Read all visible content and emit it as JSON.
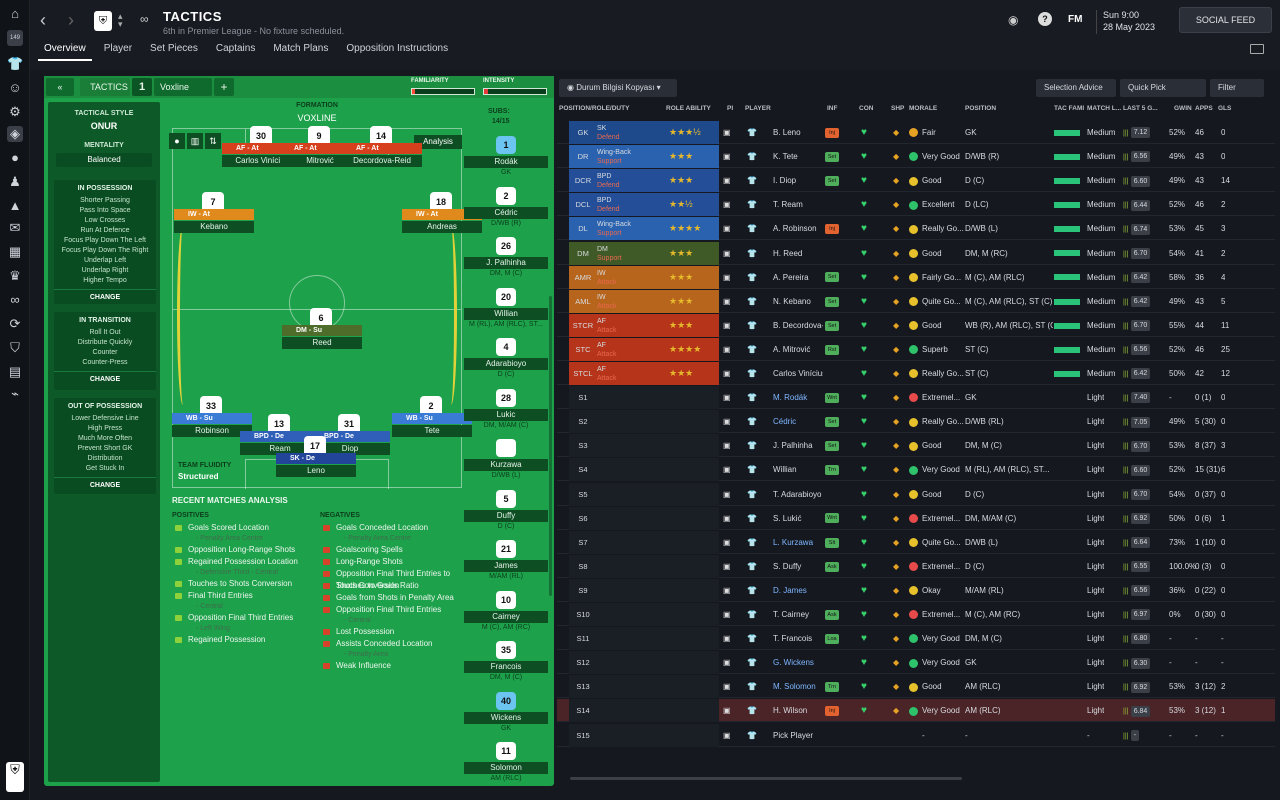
{
  "header": {
    "title": "TACTICS",
    "subtitle": "6th in Premier League - No fixture scheduled.",
    "tabs": [
      "Overview",
      "Player",
      "Set Pieces",
      "Captains",
      "Match Plans",
      "Opposition Instructions"
    ],
    "datetime_day": "Sun 9:00",
    "datetime_date": "28 May 2023",
    "social_feed": "SOCIAL FEED",
    "badge_count": "149",
    "fm_label": "FM"
  },
  "pitch_header": {
    "tactics_label": "TACTICS",
    "slot_number": "1",
    "tactic_name": "Voxline",
    "add_label": "+",
    "familiarity_label": "FAMILIARITY",
    "intensity_label": "INTENSITY"
  },
  "tactical_style": {
    "label": "TACTICAL STYLE",
    "value": "ONUR",
    "mentality_label": "MENTALITY",
    "mentality_value": "Balanced",
    "in_possession": {
      "title": "IN POSSESSION",
      "items": [
        "Shorter Passing",
        "Pass Into Space",
        "Low Crosses",
        "Run At Defence",
        "Focus Play Down The Left",
        "Focus Play Down The Right",
        "Underlap Left",
        "Underlap Right",
        "Higher Tempo"
      ],
      "change": "CHANGE"
    },
    "in_transition": {
      "title": "IN TRANSITION",
      "items": [
        "Roll It Out",
        "Distribute Quickly",
        "Counter",
        "Counter-Press"
      ],
      "change": "CHANGE"
    },
    "out_of_possession": {
      "title": "OUT OF POSSESSION",
      "items": [
        "Lower Defensive Line",
        "High Press",
        "Much More Often",
        "Prevent Short GK",
        "Distribution",
        "Get Stuck In"
      ],
      "change": "CHANGE"
    }
  },
  "formation": {
    "label": "FORMATION",
    "value": "VOXLINE",
    "analysis_label": "Analysis",
    "team_fluidity_label": "TEAM FLUIDITY",
    "team_fluidity_value": "Structured"
  },
  "players_on_pitch": [
    {
      "num": "30",
      "role": "AF - At",
      "name": "Carlos Vinícius",
      "color": "#d7401c"
    },
    {
      "num": "9",
      "role": "AF - At",
      "name": "Mitrović",
      "color": "#d7401c"
    },
    {
      "num": "14",
      "role": "AF - At",
      "name": "Decordova-Reid",
      "color": "#d7401c"
    },
    {
      "num": "7",
      "role": "IW - At",
      "name": "Kebano",
      "color": "#e08a1e"
    },
    {
      "num": "18",
      "role": "IW - At",
      "name": "Andreas",
      "color": "#e08a1e"
    },
    {
      "num": "6",
      "role": "DM - Su",
      "name": "Reed",
      "color": "#4e6d2a"
    },
    {
      "num": "33",
      "role": "WB - Su",
      "name": "Robinson",
      "color": "#3a7bd5"
    },
    {
      "num": "13",
      "role": "BPD - De",
      "name": "Ream",
      "color": "#2f5fb8"
    },
    {
      "num": "31",
      "role": "BPD - De",
      "name": "Diop",
      "color": "#2f5fb8"
    },
    {
      "num": "2",
      "role": "WB - Su",
      "name": "Tete",
      "color": "#3a7bd5"
    },
    {
      "num": "17",
      "role": "SK - De",
      "name": "Leno",
      "color": "#22459a"
    }
  ],
  "subs": {
    "label": "SUBS:",
    "count": "14/15",
    "players": [
      {
        "num": "1",
        "name": "Rodák",
        "pos": "GK"
      },
      {
        "num": "2",
        "name": "Cédric",
        "pos": "D/WB (R)"
      },
      {
        "num": "26",
        "name": "J. Palhinha",
        "pos": "DM, M (C)"
      },
      {
        "num": "20",
        "name": "Willian",
        "pos": "M (RL), AM (RLC), ST..."
      },
      {
        "num": "4",
        "name": "Adarabioyo",
        "pos": "D (C)"
      },
      {
        "num": "28",
        "name": "Lukic",
        "pos": "DM, M/AM (C)"
      },
      {
        "num": "",
        "name": "Kurzawa",
        "pos": "D/WB (L)"
      },
      {
        "num": "5",
        "name": "Duffy",
        "pos": "D (C)"
      },
      {
        "num": "21",
        "name": "James",
        "pos": "M/AM (RL)"
      },
      {
        "num": "10",
        "name": "Cairney",
        "pos": "M (C), AM (RC)"
      },
      {
        "num": "35",
        "name": "Francois",
        "pos": "DM, M (C)"
      },
      {
        "num": "40",
        "name": "Wickens",
        "pos": "GK"
      },
      {
        "num": "11",
        "name": "Solomon",
        "pos": "AM (RLC)"
      }
    ]
  },
  "recent_analysis": {
    "title": "RECENT MATCHES ANALYSIS",
    "positives_label": "POSITIVES",
    "negatives_label": "NEGATIVES",
    "positives": [
      {
        "t": "Goals Scored Location",
        "s": "- Penalty Area Centre"
      },
      {
        "t": "Opposition Long-Range Shots",
        "s": ""
      },
      {
        "t": "Regained Possession Location",
        "s": "- Defensive Third - Central"
      },
      {
        "t": "Touches to Shots Conversion",
        "s": ""
      },
      {
        "t": "Final Third Entries",
        "s": "- Central"
      },
      {
        "t": "Opposition Final Third Entries",
        "s": "- Left Wing"
      },
      {
        "t": "Regained Possession",
        "s": ""
      }
    ],
    "negatives": [
      {
        "t": "Goals Conceded Location",
        "s": "- Penalty Area Centre"
      },
      {
        "t": "Goalscoring Spells",
        "s": ""
      },
      {
        "t": "Long-Range Shots",
        "s": ""
      },
      {
        "t": "Opposition Final Third Entries to Shots Conversion",
        "s": ""
      },
      {
        "t": "Touches to Goals Ratio",
        "s": ""
      },
      {
        "t": "Goals from Shots in Penalty Area",
        "s": ""
      },
      {
        "t": "Opposition Final Third Entries",
        "s": "- Central"
      },
      {
        "t": "Lost Possession",
        "s": ""
      },
      {
        "t": "Assists Conceded Location",
        "s": "- Penalty Area"
      },
      {
        "t": "Weak Influence",
        "s": ""
      }
    ]
  },
  "right_controls": {
    "view_dropdown": "Durum Bilgisi Kopyası",
    "selection_advice": "Selection Advice",
    "quick_pick": "Quick Pick",
    "filter": "Filter"
  },
  "columns": [
    "POSITION/ROLE/DUTY",
    "ROLE ABILITY",
    "PI",
    "PLAYER",
    "INF",
    "CON",
    "SHP",
    "MORALE",
    "POSITION",
    "TAC FAMI",
    "MATCH L...",
    "LAST 5 G...",
    "GWIN",
    "APPS",
    "GLS"
  ],
  "rows": [
    {
      "pos": "GK",
      "role": "SK",
      "duty": "Defend",
      "stars": "★★★½",
      "player": "B. Leno",
      "inf": "Inj",
      "morale": "Fair",
      "position": "GK",
      "match": "Medium",
      "rating": "7.12",
      "gwin": "52%",
      "apps": "46",
      "gls": "0",
      "rowcolor": "#1e4a8c"
    },
    {
      "pos": "DR",
      "role": "Wing-Back",
      "duty": "Support",
      "stars": "★★★",
      "player": "K. Tete",
      "inf": "Set",
      "morale": "Very Good",
      "position": "D/WB (R)",
      "match": "Medium",
      "rating": "6.56",
      "gwin": "49%",
      "apps": "43",
      "gls": "0",
      "rowcolor": "#2a62b0"
    },
    {
      "pos": "DCR",
      "role": "BPD",
      "duty": "Defend",
      "stars": "★★★",
      "player": "I. Diop",
      "inf": "Set",
      "morale": "Good",
      "position": "D (C)",
      "match": "Medium",
      "rating": "6.60",
      "gwin": "49%",
      "apps": "43",
      "gls": "14",
      "rowcolor": "#244f98"
    },
    {
      "pos": "DCL",
      "role": "BPD",
      "duty": "Defend",
      "stars": "★★½",
      "player": "T. Ream",
      "inf": "",
      "morale": "Excellent",
      "position": "D (LC)",
      "match": "Medium",
      "rating": "6.44",
      "gwin": "52%",
      "apps": "46",
      "gls": "2",
      "rowcolor": "#244f98"
    },
    {
      "pos": "DL",
      "role": "Wing-Back",
      "duty": "Support",
      "stars": "★★★★",
      "player": "A. Robinson",
      "inf": "Inj",
      "morale": "Really Go...",
      "position": "D/WB (L)",
      "match": "Medium",
      "rating": "6.74",
      "gwin": "53%",
      "apps": "45",
      "gls": "3",
      "rowcolor": "#2a62b0"
    },
    {
      "pos": "DM",
      "role": "DM",
      "duty": "Support",
      "stars": "★★★",
      "player": "H. Reed",
      "inf": "",
      "morale": "Good",
      "position": "DM, M (RC)",
      "match": "Medium",
      "rating": "6.70",
      "gwin": "54%",
      "apps": "41",
      "gls": "2",
      "rowcolor": "#3f5a27"
    },
    {
      "pos": "AMR",
      "role": "IW",
      "duty": "Attack",
      "stars": "★★★",
      "player": "A. Pereira",
      "inf": "Set",
      "morale": "Fairly Go...",
      "position": "M (C), AM (RLC)",
      "match": "Medium",
      "rating": "6.42",
      "gwin": "58%",
      "apps": "36",
      "gls": "4",
      "rowcolor": "#b7651c"
    },
    {
      "pos": "AML",
      "role": "IW",
      "duty": "Attack",
      "stars": "★★★",
      "player": "N. Kebano",
      "inf": "Set",
      "morale": "Quite Go...",
      "position": "M (C), AM (RLC), ST (C)",
      "match": "Medium",
      "rating": "6.42",
      "gwin": "49%",
      "apps": "43",
      "gls": "5",
      "rowcolor": "#b7651c"
    },
    {
      "pos": "STCR",
      "role": "AF",
      "duty": "Attack",
      "stars": "★★★",
      "player": "B. Decordova-R...",
      "inf": "Set",
      "morale": "Good",
      "position": "WB (R), AM (RLC), ST (C)",
      "match": "Medium",
      "rating": "6.70",
      "gwin": "55%",
      "apps": "44",
      "gls": "11",
      "rowcolor": "#b5341a"
    },
    {
      "pos": "STC",
      "role": "AF",
      "duty": "Attack",
      "stars": "★★★★",
      "player": "A. Mitrović",
      "inf": "Rst",
      "morale": "Superb",
      "position": "ST (C)",
      "match": "Medium",
      "rating": "6.56",
      "gwin": "52%",
      "apps": "46",
      "gls": "25",
      "rowcolor": "#b5341a"
    },
    {
      "pos": "STCL",
      "role": "AF",
      "duty": "Attack",
      "stars": "★★★",
      "player": "Carlos Vinícius",
      "inf": "",
      "morale": "Really Go...",
      "position": "ST (C)",
      "match": "Medium",
      "rating": "6.42",
      "gwin": "50%",
      "apps": "42",
      "gls": "12",
      "rowcolor": "#b5341a"
    },
    {
      "pos": "S1",
      "role": "",
      "duty": "",
      "stars": "",
      "player": "M. Rodák",
      "inf": "Wnt",
      "morale": "Extremel...",
      "position": "GK",
      "match": "Light",
      "rating": "7.40",
      "gwin": "-",
      "apps": "0 (1)",
      "gls": "0",
      "rowcolor": ""
    },
    {
      "pos": "S2",
      "role": "",
      "duty": "",
      "stars": "",
      "player": "Cédric",
      "inf": "Set",
      "morale": "Really Go...",
      "position": "D/WB (RL)",
      "match": "Light",
      "rating": "7.05",
      "gwin": "49%",
      "apps": "5 (30)",
      "gls": "0",
      "rowcolor": ""
    },
    {
      "pos": "S3",
      "role": "",
      "duty": "",
      "stars": "",
      "player": "J. Palhinha",
      "inf": "Set",
      "morale": "Good",
      "position": "DM, M (C)",
      "match": "Light",
      "rating": "6.70",
      "gwin": "53%",
      "apps": "8 (37)",
      "gls": "3",
      "rowcolor": ""
    },
    {
      "pos": "S4",
      "role": "",
      "duty": "",
      "stars": "",
      "player": "Willian",
      "inf": "Trn",
      "morale": "Very Good",
      "position": "M (RL), AM (RLC), ST...",
      "match": "Light",
      "rating": "6.60",
      "gwin": "52%",
      "apps": "15 (31)",
      "gls": "6",
      "rowcolor": ""
    },
    {
      "pos": "S5",
      "role": "",
      "duty": "",
      "stars": "",
      "player": "T. Adarabioyo",
      "inf": "",
      "morale": "Good",
      "position": "D (C)",
      "match": "Light",
      "rating": "6.70",
      "gwin": "54%",
      "apps": "0 (37)",
      "gls": "0",
      "rowcolor": ""
    },
    {
      "pos": "S6",
      "role": "",
      "duty": "",
      "stars": "",
      "player": "S. Lukić",
      "inf": "Wnt",
      "morale": "Extremel...",
      "position": "DM, M/AM (C)",
      "match": "Light",
      "rating": "6.92",
      "gwin": "50%",
      "apps": "0 (6)",
      "gls": "1",
      "rowcolor": ""
    },
    {
      "pos": "S7",
      "role": "",
      "duty": "",
      "stars": "",
      "player": "L. Kurzawa",
      "inf": "Slt",
      "morale": "Quite Go...",
      "position": "D/WB (L)",
      "match": "Light",
      "rating": "6.64",
      "gwin": "73%",
      "apps": "1 (10)",
      "gls": "0",
      "rowcolor": ""
    },
    {
      "pos": "S8",
      "role": "",
      "duty": "",
      "stars": "",
      "player": "S. Duffy",
      "inf": "Ask",
      "morale": "Extremel...",
      "position": "D (C)",
      "match": "Light",
      "rating": "6.55",
      "gwin": "100.0%",
      "apps": "0 (3)",
      "gls": "0",
      "rowcolor": ""
    },
    {
      "pos": "S9",
      "role": "",
      "duty": "",
      "stars": "",
      "player": "D. James",
      "inf": "",
      "morale": "Okay",
      "position": "M/AM (RL)",
      "match": "Light",
      "rating": "6.56",
      "gwin": "36%",
      "apps": "0 (22)",
      "gls": "0",
      "rowcolor": ""
    },
    {
      "pos": "S10",
      "role": "",
      "duty": "",
      "stars": "",
      "player": "T. Cairney",
      "inf": "Ask",
      "morale": "Extremel...",
      "position": "M (C), AM (RC)",
      "match": "Light",
      "rating": "6.97",
      "gwin": "0%",
      "apps": "0 (30)",
      "gls": "0",
      "rowcolor": ""
    },
    {
      "pos": "S11",
      "role": "",
      "duty": "",
      "stars": "",
      "player": "T. Francois",
      "inf": "Loa",
      "morale": "Very Good",
      "position": "DM, M (C)",
      "match": "Light",
      "rating": "6.80",
      "gwin": "-",
      "apps": "-",
      "gls": "-",
      "rowcolor": ""
    },
    {
      "pos": "S12",
      "role": "",
      "duty": "",
      "stars": "",
      "player": "G. Wickens",
      "inf": "",
      "morale": "Very Good",
      "position": "GK",
      "match": "Light",
      "rating": "6.30",
      "gwin": "-",
      "apps": "-",
      "gls": "-",
      "rowcolor": ""
    },
    {
      "pos": "S13",
      "role": "",
      "duty": "",
      "stars": "",
      "player": "M. Solomon",
      "inf": "Trn",
      "morale": "Good",
      "position": "AM (RLC)",
      "match": "Light",
      "rating": "6.92",
      "gwin": "53%",
      "apps": "3 (12)",
      "gls": "2",
      "rowcolor": ""
    },
    {
      "pos": "S14",
      "role": "",
      "duty": "",
      "stars": "",
      "player": "H. Wilson",
      "inf": "Inj",
      "morale": "Very Good",
      "position": "AM (RLC)",
      "match": "Light",
      "rating": "6.84",
      "gwin": "53%",
      "apps": "3 (12)",
      "gls": "1",
      "rowcolor": "#5a2a2f"
    },
    {
      "pos": "S15",
      "role": "",
      "duty": "",
      "stars": "",
      "player": "Pick Player",
      "inf": "",
      "morale": "-",
      "position": "-",
      "match": "-",
      "rating": "-",
      "gwin": "-",
      "apps": "-",
      "gls": "-",
      "rowcolor": ""
    }
  ]
}
